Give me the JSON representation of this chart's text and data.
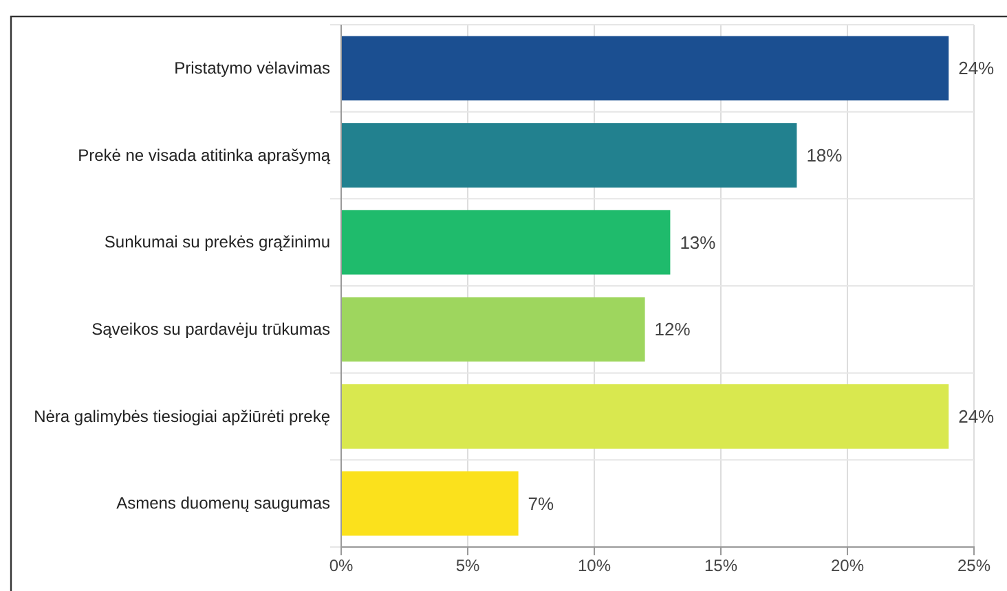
{
  "chart_data": {
    "type": "bar",
    "orientation": "horizontal",
    "categories": [
      "Pristatymo vėlavimas",
      "Prekė ne visada atitinka aprašymą",
      "Sunkumai su prekės grąžinimu",
      "Sąveikos su pardavėju trūkumas",
      "Nėra galimybės tiesiogiai apžiūrėti prekę",
      "Asmens duomenų saugumas"
    ],
    "values": [
      24,
      18,
      13,
      12,
      24,
      7
    ],
    "colors": [
      "#1b4f91",
      "#22818f",
      "#1fbb6c",
      "#9ed65e",
      "#d9e84f",
      "#fbe11c"
    ],
    "value_labels": [
      "24%",
      "18%",
      "13%",
      "12%",
      "24%",
      "7%"
    ],
    "xlim": [
      0,
      25
    ],
    "xticks": [
      {
        "value": 0,
        "label": "0%"
      },
      {
        "value": 5,
        "label": "5%"
      },
      {
        "value": 10,
        "label": "10%"
      },
      {
        "value": 15,
        "label": "15%"
      },
      {
        "value": 20,
        "label": "20%"
      },
      {
        "value": 25,
        "label": "25%"
      }
    ],
    "grid": true
  }
}
